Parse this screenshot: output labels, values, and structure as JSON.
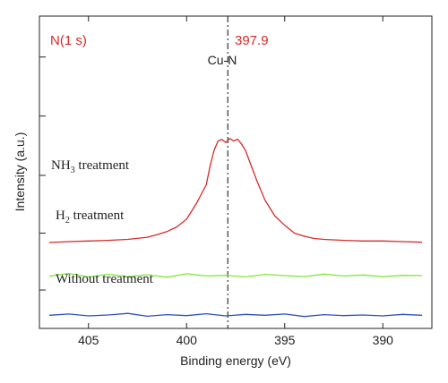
{
  "chart_data": {
    "type": "line",
    "xlabel": "Binding energy (eV)",
    "ylabel": "Intensity (a.u.)",
    "xlim": [
      407.5,
      387.5
    ],
    "x_reversed": true,
    "ylim": [
      0,
      100
    ],
    "x_ticks": [
      405,
      400,
      395,
      390
    ],
    "x_tick_labels": [
      "405",
      "400",
      "395",
      "390"
    ],
    "y_ticks_shown": true,
    "y_tick_labels_shown": false,
    "grid": false,
    "legend": "none",
    "annotations": {
      "n1s_label": "N(1 s)",
      "peak_value_label": "397.9",
      "peak_line_x": 397.9,
      "peak_label": "Cu-N"
    },
    "series": [
      {
        "name": "NH3 treatment",
        "label_main": "NH",
        "label_sub": "3",
        "label_rest": " treatment",
        "color": "#d62a2a",
        "x": [
          407,
          406,
          405,
          404,
          403,
          402,
          401.5,
          401,
          400.5,
          400,
          399.5,
          399,
          398.8,
          398.6,
          398.4,
          398.2,
          398,
          397.8,
          397.6,
          397.4,
          397.2,
          397,
          396.7,
          396.4,
          396,
          395.5,
          395,
          394.5,
          394,
          393.5,
          393,
          392,
          391,
          390,
          389,
          388
        ],
        "y": [
          27.5,
          27.8,
          28,
          28.2,
          28.5,
          29.2,
          30,
          31,
          32.5,
          35,
          40,
          46,
          52,
          57,
          60,
          60.5,
          59.5,
          60.8,
          60,
          60.6,
          59,
          57,
          52,
          47,
          41,
          36,
          33,
          30.5,
          29.5,
          28.8,
          28.5,
          28.2,
          28,
          28,
          27.8,
          27.6
        ]
      },
      {
        "name": "H2 treatment",
        "label_main": "H",
        "label_sub": "2",
        "label_rest": " treatment",
        "color": "#7fe832",
        "x": [
          407,
          406,
          405,
          404,
          403,
          402,
          401,
          400,
          399,
          398,
          397,
          396,
          395,
          394,
          393,
          392,
          391,
          390,
          389,
          388
        ],
        "y": [
          16.7,
          17.6,
          16.5,
          17.3,
          16.6,
          17.2,
          16.4,
          17.5,
          16.8,
          17,
          16.5,
          17.3,
          16.9,
          16.6,
          17.4,
          16.8,
          17.1,
          16.6,
          17,
          16.9
        ]
      },
      {
        "name": "Without treatment",
        "label_main": "Without treatment",
        "label_sub": "",
        "label_rest": "",
        "color": "#2d4fc2",
        "x": [
          407,
          406,
          405,
          404,
          403,
          402,
          401,
          400,
          399,
          398,
          397,
          396,
          395,
          394,
          393,
          392,
          391,
          390,
          389,
          388
        ],
        "y": [
          4.2,
          4.6,
          4,
          4.3,
          4.8,
          3.9,
          4.4,
          4.1,
          4.7,
          4,
          4.5,
          4.2,
          4.6,
          3.8,
          4.4,
          4.1,
          4.3,
          4,
          4.5,
          4.2
        ]
      }
    ]
  }
}
